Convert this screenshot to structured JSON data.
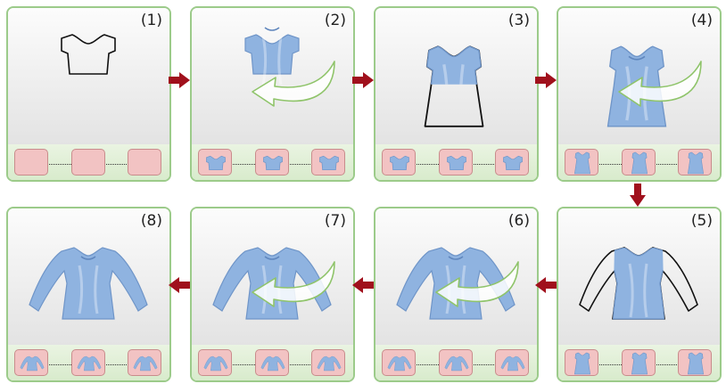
{
  "diagram": {
    "steps": [
      {
        "label": "(1)",
        "shape": "top",
        "style": "sketch",
        "guide": false,
        "thumbs": [
          "empty",
          "empty",
          "empty"
        ]
      },
      {
        "label": "(2)",
        "shape": "top",
        "style": "mesh",
        "guide": true,
        "thumbs": [
          "top",
          "top",
          "top"
        ]
      },
      {
        "label": "(3)",
        "shape": "dress",
        "style": "mesh-top-sketch",
        "guide": false,
        "thumbs": [
          "top",
          "top",
          "top"
        ]
      },
      {
        "label": "(4)",
        "shape": "dress",
        "style": "mesh",
        "guide": true,
        "thumbs": [
          "dress",
          "dress",
          "dress"
        ]
      },
      {
        "label": "(5)",
        "shape": "longsleeve",
        "style": "mesh-body-sketch",
        "guide": false,
        "thumbs": [
          "dress",
          "dress",
          "dress"
        ]
      },
      {
        "label": "(6)",
        "shape": "longsleeve",
        "style": "mesh",
        "guide": true,
        "thumbs": [
          "longsleeve",
          "longsleeve",
          "longsleeve"
        ]
      },
      {
        "label": "(7)",
        "shape": "longsleeve",
        "style": "mesh",
        "guide": true,
        "thumbs": [
          "longsleeve",
          "longsleeve",
          "longsleeve"
        ]
      },
      {
        "label": "(8)",
        "shape": "longsleeve",
        "style": "mesh",
        "guide": false,
        "thumbs": [
          "longsleeve",
          "longsleeve",
          "longsleeve"
        ]
      }
    ],
    "colors": {
      "panel_border": "#9ccb8a",
      "garment_fill": "#8fb3e0",
      "garment_edge": "#6f95c8",
      "thumb_fill": "#f2c3c3",
      "arrow": "#a0101c",
      "guide_stroke": "#8fc46a"
    }
  }
}
